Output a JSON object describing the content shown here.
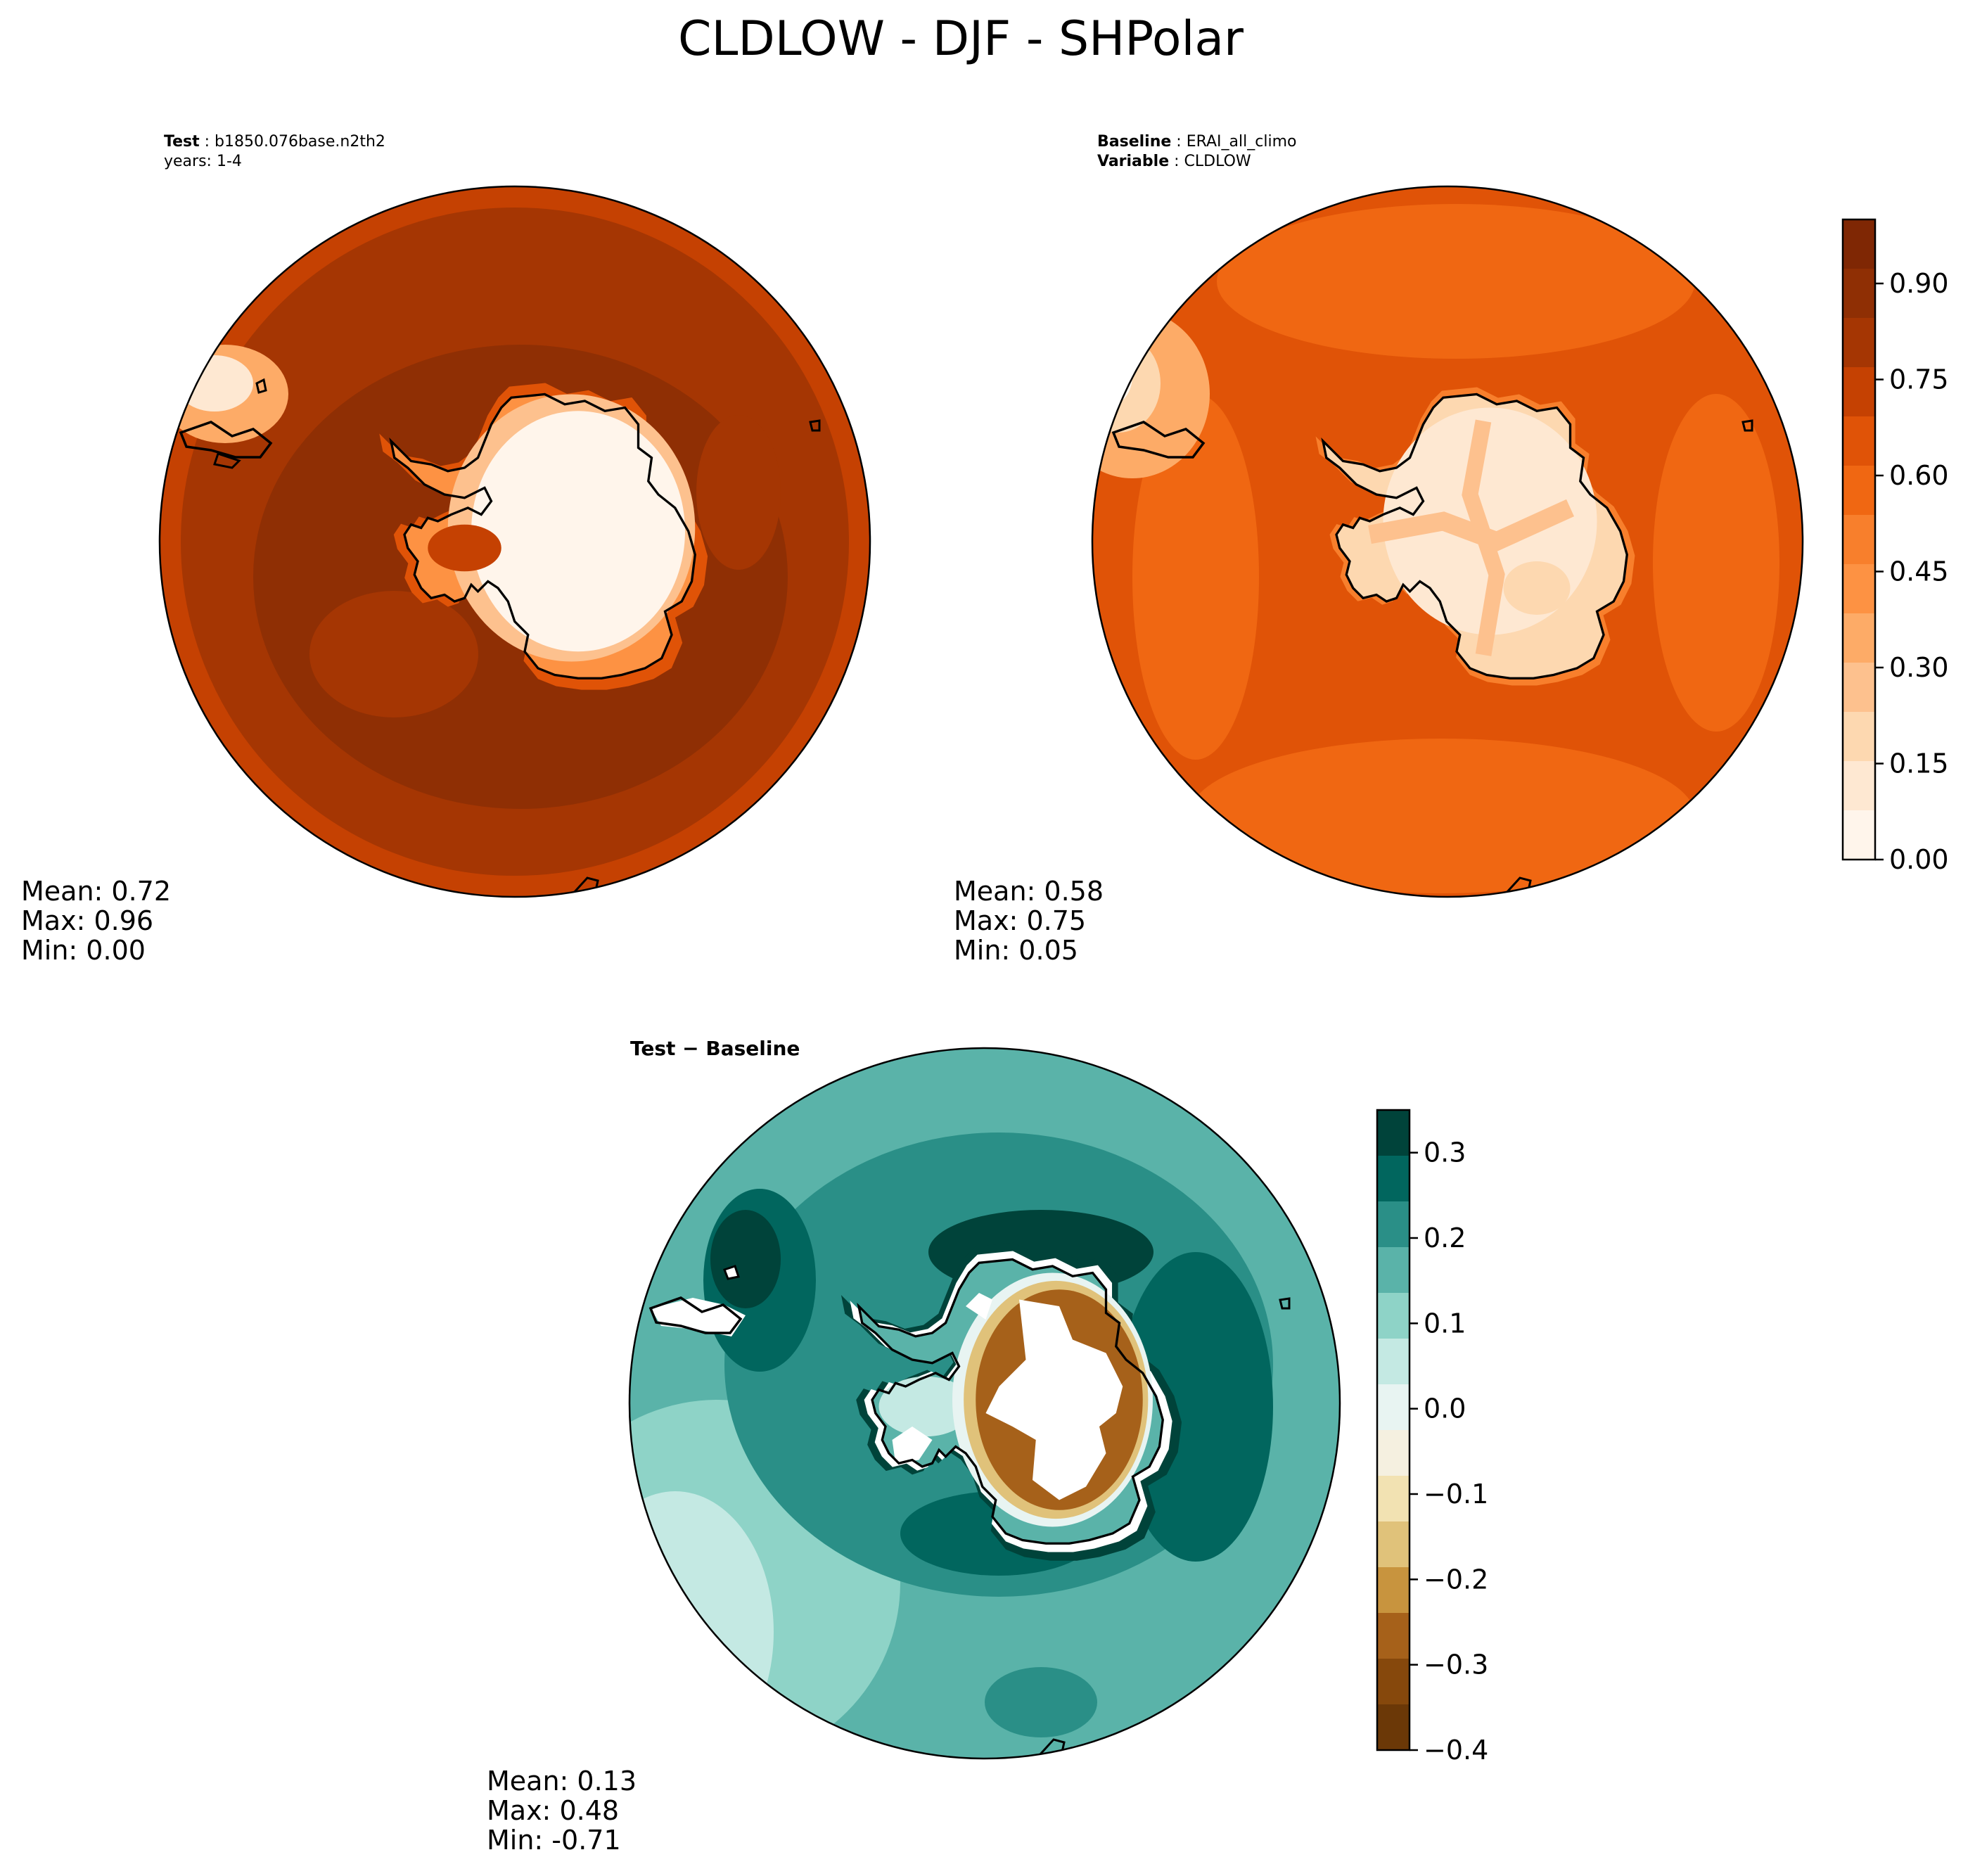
{
  "figure": {
    "title": "CLDLOW - DJF - SHPolar"
  },
  "panels": {
    "test": {
      "label_key": "Test",
      "label_value": "b1850.076base.n2th2",
      "years": "years: 1-4",
      "mean": "Mean:  0.72",
      "max": "Max:  0.96",
      "min": "Min:  0.00"
    },
    "baseline": {
      "label_key": "Baseline",
      "label_value": "ERAI_all_climo",
      "var_key": "Variable",
      "var_value": "CLDLOW",
      "mean": "Mean:  0.58",
      "max": "Max:  0.75",
      "min": "Min:  0.05"
    },
    "diff": {
      "label": "Test − Baseline",
      "mean": "Mean:  0.13",
      "max": "Max:  0.48",
      "min": "Min: -0.71"
    }
  },
  "colors": {
    "orange_scale": [
      "#fff5eb",
      "#fee8d2",
      "#fdd8b0",
      "#fdc18e",
      "#fdab67",
      "#fd9243",
      "#f87f2c",
      "#f06712",
      "#e05307",
      "#c54102",
      "#a53603",
      "#8f2f04",
      "#7f2704"
    ],
    "teal_scale": [
      "#00433a",
      "#01665e",
      "#2a8f87",
      "#5ab3a9",
      "#8ed3c7",
      "#c4e9e3",
      "#e8f4f2",
      "#f5f0e0",
      "#f2e2b2",
      "#e0c27a",
      "#c8943e",
      "#a6611a",
      "#86480c",
      "#6b3807"
    ],
    "coast": "#000000"
  },
  "chart_data": [
    {
      "type": "contourf-polar-map",
      "name": "test",
      "title": "Test : b1850.076base.n2th2",
      "subtitle": "years: 1-4",
      "variable": "CLDLOW",
      "season": "DJF",
      "region": "SHPolar",
      "stats": {
        "mean": 0.72,
        "max": 0.96,
        "min": 0.0
      },
      "colorbar": "shared with baseline"
    },
    {
      "type": "contourf-polar-map",
      "name": "baseline",
      "title": "Baseline : ERAI_all_climo",
      "subtitle": "Variable : CLDLOW",
      "stats": {
        "mean": 0.58,
        "max": 0.75,
        "min": 0.05
      },
      "colorbar": {
        "range": [
          0.0,
          1.0
        ],
        "levels": 13,
        "ticks": [
          0.0,
          0.15,
          0.3,
          0.45,
          0.6,
          0.75,
          0.9
        ],
        "tick_labels": [
          "0.00",
          "0.15",
          "0.30",
          "0.45",
          "0.60",
          "0.75",
          "0.90"
        ]
      }
    },
    {
      "type": "contourf-polar-map",
      "name": "diff",
      "title": "Test − Baseline",
      "stats": {
        "mean": 0.13,
        "max": 0.48,
        "min": -0.71
      },
      "colorbar": {
        "range": [
          -0.4,
          0.35
        ],
        "levels": 14,
        "ticks": [
          -0.4,
          -0.3,
          -0.2,
          -0.1,
          0.0,
          0.1,
          0.2,
          0.3
        ],
        "tick_labels": [
          "−0.4",
          "−0.3",
          "−0.2",
          "−0.1",
          "0.0",
          "0.1",
          "0.2",
          "0.3"
        ]
      }
    }
  ]
}
